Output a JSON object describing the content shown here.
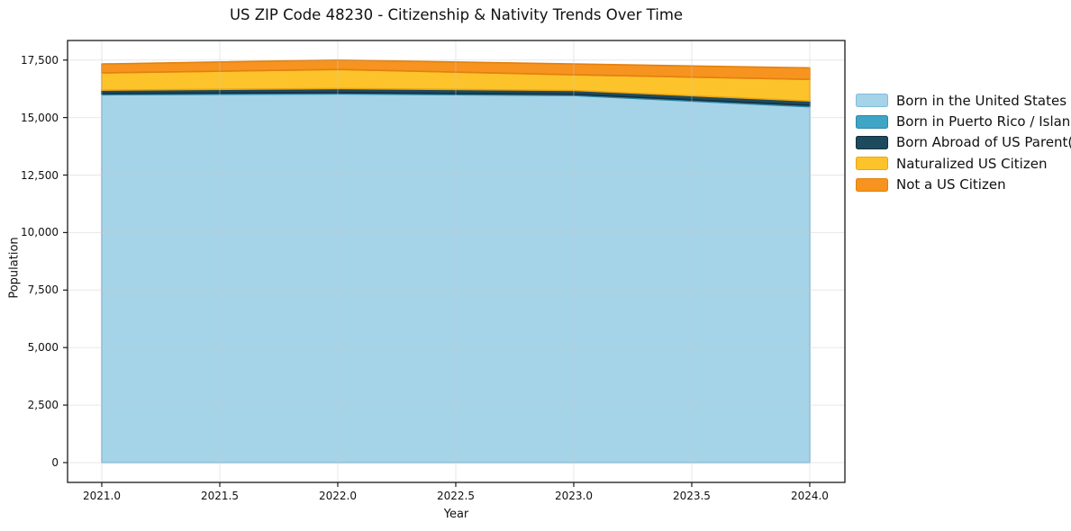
{
  "title": "US ZIP Code 48230 - Citizenship & Nativity Trends Over Time",
  "chart_data": {
    "type": "area",
    "stacked": true,
    "title": "US ZIP Code 48230 - Citizenship & Nativity Trends Over Time",
    "xlabel": "Year",
    "ylabel": "Population",
    "x": [
      2021,
      2022,
      2023,
      2024
    ],
    "series": [
      {
        "name": "Born in the United States",
        "color": "#a5d3e8",
        "edge_color": "#82bcd9",
        "values": [
          15990,
          16030,
          15960,
          15470
        ]
      },
      {
        "name": "Born in Puerto Rico / Islands",
        "color": "#3fa5c7",
        "edge_color": "#2e86a6",
        "values": [
          50,
          50,
          50,
          60
        ]
      },
      {
        "name": "Born Abroad of US Parent(s)",
        "color": "#1e4a5e",
        "edge_color": "#132f3d",
        "values": [
          150,
          180,
          170,
          190
        ]
      },
      {
        "name": "Naturalized US Citizen",
        "color": "#fdc32b",
        "edge_color": "#eda511",
        "values": [
          750,
          830,
          680,
          940
        ]
      },
      {
        "name": "Not a US Citizen",
        "color": "#f6941f",
        "edge_color": "#e3800d",
        "values": [
          390,
          410,
          470,
          500
        ]
      }
    ],
    "totals": [
      17330,
      17500,
      17330,
      17160
    ],
    "xlim": [
      2020.855,
      2024.149
    ],
    "ylim": [
      -861,
      18350
    ],
    "x_ticks": {
      "values": [
        2021.0,
        2021.5,
        2022.0,
        2022.5,
        2023.0,
        2023.5,
        2024.0
      ],
      "labels": [
        "2021.0",
        "2021.5",
        "2022.0",
        "2022.5",
        "2023.0",
        "2023.5",
        "2024.0"
      ]
    },
    "y_ticks": {
      "values": [
        0,
        2500,
        5000,
        7500,
        10000,
        12500,
        15000,
        17500
      ],
      "labels": [
        "0",
        "2,500",
        "5,000",
        "7,500",
        "10,000",
        "12,500",
        "15,000",
        "17,500"
      ]
    },
    "grid": true,
    "grid_color": "#c9c9c9",
    "spine_color": "#1a1a1a",
    "background": "#ffffff",
    "legend_position": "right"
  }
}
